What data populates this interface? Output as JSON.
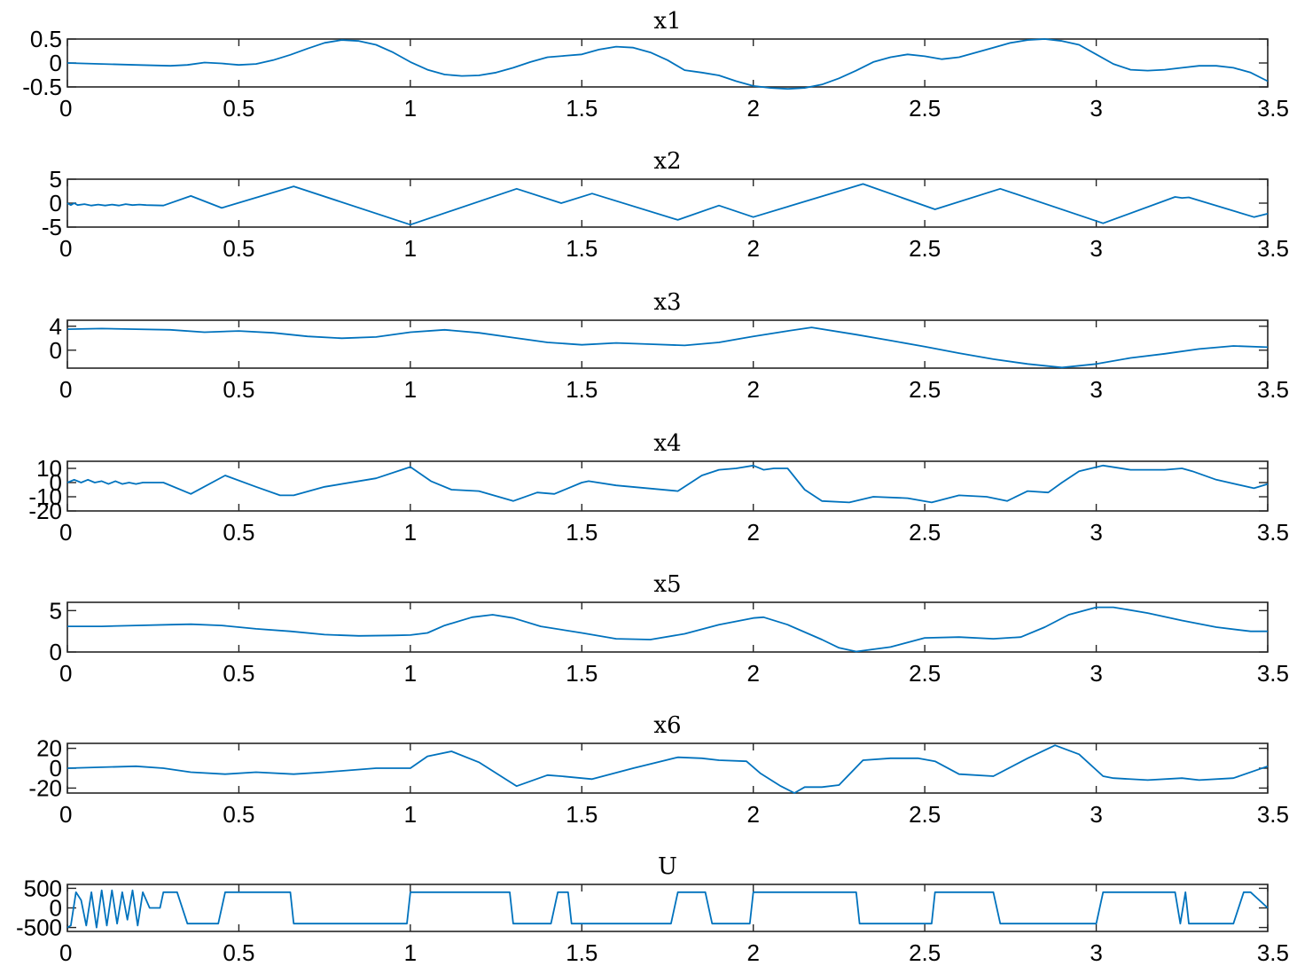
{
  "figure": {
    "line_color": "#0072BD",
    "axis_color": "#262626"
  },
  "chart_data": [
    {
      "type": "line",
      "title": "x1",
      "xlim": [
        0,
        3.5
      ],
      "ylim": [
        -0.5,
        0.5
      ],
      "xticks": [
        0,
        0.5,
        1,
        1.5,
        2,
        2.5,
        3,
        3.5
      ],
      "xtick_labels": [
        "0",
        "0.5",
        "1",
        "1.5",
        "2",
        "2.5",
        "3",
        "3.5"
      ],
      "yticks": [
        -0.5,
        0,
        0.5
      ],
      "ytick_labels": [
        "-0.5",
        "0",
        "0.5"
      ],
      "grid": false,
      "x": [
        0,
        0.1,
        0.2,
        0.3,
        0.35,
        0.4,
        0.45,
        0.5,
        0.55,
        0.6,
        0.65,
        0.7,
        0.75,
        0.8,
        0.85,
        0.9,
        0.95,
        1.0,
        1.05,
        1.1,
        1.15,
        1.2,
        1.25,
        1.3,
        1.35,
        1.4,
        1.45,
        1.5,
        1.55,
        1.6,
        1.65,
        1.7,
        1.75,
        1.8,
        1.85,
        1.9,
        1.95,
        2.0,
        2.05,
        2.1,
        2.15,
        2.2,
        2.25,
        2.3,
        2.35,
        2.4,
        2.45,
        2.5,
        2.55,
        2.6,
        2.65,
        2.7,
        2.75,
        2.8,
        2.85,
        2.9,
        2.95,
        3.0,
        3.05,
        3.1,
        3.15,
        3.2,
        3.25,
        3.3,
        3.35,
        3.4,
        3.45,
        3.5
      ],
      "y": [
        0.0,
        -0.02,
        -0.04,
        -0.06,
        -0.04,
        0.01,
        -0.01,
        -0.04,
        -0.02,
        0.06,
        0.17,
        0.3,
        0.42,
        0.48,
        0.46,
        0.38,
        0.22,
        0.02,
        -0.14,
        -0.24,
        -0.27,
        -0.26,
        -0.2,
        -0.1,
        0.02,
        0.12,
        0.15,
        0.18,
        0.28,
        0.34,
        0.32,
        0.22,
        0.06,
        -0.15,
        -0.2,
        -0.26,
        -0.38,
        -0.48,
        -0.52,
        -0.54,
        -0.52,
        -0.45,
        -0.32,
        -0.16,
        0.02,
        0.12,
        0.18,
        0.14,
        0.08,
        0.12,
        0.22,
        0.32,
        0.42,
        0.48,
        0.5,
        0.46,
        0.38,
        0.18,
        -0.02,
        -0.14,
        -0.16,
        -0.14,
        -0.1,
        -0.06,
        -0.06,
        -0.1,
        -0.2,
        -0.38
      ]
    },
    {
      "type": "line",
      "title": "x2",
      "xlim": [
        0,
        3.5
      ],
      "ylim": [
        -5,
        5
      ],
      "xticks": [
        0,
        0.5,
        1,
        1.5,
        2,
        2.5,
        3,
        3.5
      ],
      "xtick_labels": [
        "0",
        "0.5",
        "1",
        "1.5",
        "2",
        "2.5",
        "3",
        "3.5"
      ],
      "yticks": [
        -5,
        0,
        5
      ],
      "ytick_labels": [
        "-5",
        "0",
        "5"
      ],
      "grid": false,
      "x": [
        0,
        0.01,
        0.02,
        0.03,
        0.05,
        0.07,
        0.09,
        0.11,
        0.13,
        0.15,
        0.17,
        0.19,
        0.21,
        0.23,
        0.28,
        0.36,
        0.45,
        0.66,
        1.0,
        1.31,
        1.44,
        1.53,
        1.78,
        1.9,
        2.0,
        2.32,
        2.53,
        2.72,
        3.02,
        3.23,
        3.25,
        3.27,
        3.46,
        3.5
      ],
      "y": [
        0.0,
        -0.4,
        0.0,
        -0.4,
        -0.2,
        -0.5,
        -0.3,
        -0.5,
        -0.3,
        -0.5,
        -0.2,
        -0.4,
        -0.3,
        -0.4,
        -0.5,
        1.5,
        -1.0,
        3.5,
        -4.5,
        3.0,
        0.0,
        2.0,
        -3.5,
        -0.5,
        -2.9,
        4.0,
        -1.3,
        3.0,
        -4.2,
        1.3,
        1.1,
        1.2,
        -2.9,
        -2.2
      ]
    },
    {
      "type": "line",
      "title": "x3",
      "xlim": [
        0,
        3.5
      ],
      "ylim": [
        -3,
        5
      ],
      "xticks": [
        0,
        0.5,
        1,
        1.5,
        2,
        2.5,
        3,
        3.5
      ],
      "xtick_labels": [
        "0",
        "0.5",
        "1",
        "1.5",
        "2",
        "2.5",
        "3",
        "3.5"
      ],
      "yticks": [
        0,
        4
      ],
      "ytick_labels": [
        "0",
        "4"
      ],
      "grid": false,
      "x": [
        0,
        0.1,
        0.2,
        0.3,
        0.4,
        0.5,
        0.6,
        0.7,
        0.8,
        0.9,
        1.0,
        1.1,
        1.2,
        1.3,
        1.4,
        1.5,
        1.6,
        1.7,
        1.8,
        1.9,
        2.0,
        2.1,
        2.17,
        2.3,
        2.4,
        2.5,
        2.6,
        2.7,
        2.8,
        2.9,
        3.0,
        3.1,
        3.2,
        3.3,
        3.4,
        3.5
      ],
      "y": [
        3.5,
        3.6,
        3.5,
        3.4,
        3.0,
        3.2,
        2.9,
        2.3,
        2.0,
        2.2,
        3.0,
        3.4,
        2.9,
        2.1,
        1.3,
        0.9,
        1.2,
        1.0,
        0.8,
        1.3,
        2.3,
        3.2,
        3.8,
        2.6,
        1.6,
        0.6,
        -0.5,
        -1.5,
        -2.3,
        -2.9,
        -2.3,
        -1.3,
        -0.6,
        0.2,
        0.7,
        0.5
      ]
    },
    {
      "type": "line",
      "title": "x4",
      "xlim": [
        0,
        3.5
      ],
      "ylim": [
        -20,
        15
      ],
      "xticks": [
        0,
        0.5,
        1,
        1.5,
        2,
        2.5,
        3,
        3.5
      ],
      "xtick_labels": [
        "0",
        "0.5",
        "1",
        "1.5",
        "2",
        "2.5",
        "3",
        "3.5"
      ],
      "yticks": [
        -20,
        -10,
        0,
        10
      ],
      "ytick_labels": [
        "-20",
        "-10",
        "0",
        "10"
      ],
      "grid": false,
      "x": [
        0,
        0.02,
        0.04,
        0.06,
        0.08,
        0.1,
        0.12,
        0.14,
        0.16,
        0.18,
        0.2,
        0.22,
        0.24,
        0.28,
        0.36,
        0.46,
        0.55,
        0.62,
        0.66,
        0.75,
        0.9,
        1.0,
        1.06,
        1.12,
        1.2,
        1.3,
        1.37,
        1.42,
        1.5,
        1.52,
        1.6,
        1.78,
        1.85,
        1.9,
        1.95,
        2.0,
        2.03,
        2.06,
        2.1,
        2.15,
        2.2,
        2.28,
        2.35,
        2.45,
        2.52,
        2.6,
        2.68,
        2.74,
        2.8,
        2.86,
        2.9,
        2.95,
        3.02,
        3.1,
        3.2,
        3.25,
        3.28,
        3.35,
        3.46,
        3.5
      ],
      "y": [
        0,
        2,
        0,
        2,
        0,
        1,
        -1,
        1,
        -1,
        0,
        -1,
        0,
        0,
        0,
        -8,
        5,
        -3,
        -9,
        -9,
        -3,
        3,
        11,
        1,
        -5,
        -6,
        -13,
        -7,
        -8,
        0,
        1,
        -2,
        -6,
        5,
        9,
        10,
        12,
        9,
        10,
        10,
        -5,
        -13,
        -14,
        -10,
        -11,
        -14,
        -9,
        -10,
        -13,
        -6,
        -7,
        0,
        8,
        12,
        9,
        9,
        10,
        8,
        2,
        -4,
        -1
      ]
    },
    {
      "type": "line",
      "title": "x5",
      "xlim": [
        0,
        3.5
      ],
      "ylim": [
        0,
        6
      ],
      "xticks": [
        0,
        0.5,
        1,
        1.5,
        2,
        2.5,
        3,
        3.5
      ],
      "xtick_labels": [
        "0",
        "0.5",
        "1",
        "1.5",
        "2",
        "2.5",
        "3",
        "3.5"
      ],
      "yticks": [
        0,
        5
      ],
      "ytick_labels": [
        "0",
        "5"
      ],
      "grid": false,
      "x": [
        0,
        0.1,
        0.2,
        0.3,
        0.36,
        0.45,
        0.55,
        0.65,
        0.75,
        0.85,
        0.95,
        1.0,
        1.05,
        1.1,
        1.18,
        1.24,
        1.3,
        1.38,
        1.5,
        1.6,
        1.7,
        1.8,
        1.9,
        2.0,
        2.03,
        2.1,
        2.2,
        2.25,
        2.3,
        2.4,
        2.5,
        2.6,
        2.7,
        2.78,
        2.85,
        2.92,
        3.0,
        3.05,
        3.15,
        3.25,
        3.35,
        3.45,
        3.5
      ],
      "y": [
        3.1,
        3.1,
        3.2,
        3.3,
        3.35,
        3.2,
        2.8,
        2.5,
        2.1,
        1.95,
        2.0,
        2.05,
        2.3,
        3.2,
        4.2,
        4.5,
        4.1,
        3.1,
        2.3,
        1.6,
        1.5,
        2.2,
        3.3,
        4.1,
        4.2,
        3.3,
        1.5,
        0.5,
        0.05,
        0.6,
        1.7,
        1.8,
        1.6,
        1.8,
        3.0,
        4.5,
        5.4,
        5.4,
        4.7,
        3.8,
        3.0,
        2.5,
        2.5
      ]
    },
    {
      "type": "line",
      "title": "x6",
      "xlim": [
        0,
        3.5
      ],
      "ylim": [
        -25,
        25
      ],
      "xticks": [
        0,
        0.5,
        1,
        1.5,
        2,
        2.5,
        3,
        3.5
      ],
      "xtick_labels": [
        "0",
        "0.5",
        "1",
        "1.5",
        "2",
        "2.5",
        "3",
        "3.5"
      ],
      "yticks": [
        -20,
        0,
        20
      ],
      "ytick_labels": [
        "-20",
        "0",
        "20"
      ],
      "grid": false,
      "x": [
        0,
        0.1,
        0.2,
        0.28,
        0.36,
        0.46,
        0.55,
        0.66,
        0.75,
        0.9,
        1.0,
        1.05,
        1.12,
        1.2,
        1.31,
        1.4,
        1.44,
        1.53,
        1.65,
        1.78,
        1.85,
        1.9,
        1.98,
        2.02,
        2.08,
        2.12,
        2.15,
        2.2,
        2.25,
        2.32,
        2.4,
        2.48,
        2.53,
        2.6,
        2.7,
        2.8,
        2.88,
        2.95,
        3.02,
        3.05,
        3.15,
        3.25,
        3.3,
        3.4,
        3.5
      ],
      "y": [
        0,
        1,
        2,
        0,
        -4,
        -6,
        -4,
        -6,
        -4,
        0,
        0,
        12,
        17,
        6,
        -18,
        -7,
        -8,
        -11,
        0,
        11,
        10,
        8,
        7,
        -5,
        -18,
        -25,
        -19,
        -19,
        -17,
        8,
        10,
        10,
        7,
        -6,
        -8,
        10,
        23,
        14,
        -8,
        -10,
        -12,
        -10,
        -12,
        -10,
        2
      ]
    },
    {
      "type": "line",
      "title": "U",
      "xlim": [
        0,
        3.5
      ],
      "ylim": [
        -600,
        600
      ],
      "xticks": [
        0,
        0.5,
        1,
        1.5,
        2,
        2.5,
        3,
        3.5
      ],
      "xtick_labels": [
        "0",
        "0.5",
        "1",
        "1.5",
        "2",
        "2.5",
        "3",
        "3.5"
      ],
      "yticks": [
        -500,
        0,
        500
      ],
      "ytick_labels": [
        "-500",
        "0",
        "500"
      ],
      "grid": false,
      "x": [
        0,
        0.01,
        0.025,
        0.04,
        0.055,
        0.07,
        0.085,
        0.1,
        0.115,
        0.13,
        0.145,
        0.16,
        0.175,
        0.19,
        0.205,
        0.22,
        0.24,
        0.27,
        0.28,
        0.32,
        0.35,
        0.36,
        0.44,
        0.46,
        0.65,
        0.66,
        0.99,
        1.0,
        1.29,
        1.3,
        1.41,
        1.43,
        1.46,
        1.47,
        1.76,
        1.78,
        1.86,
        1.88,
        1.99,
        2.0,
        2.3,
        2.31,
        2.52,
        2.53,
        2.7,
        2.72,
        3.0,
        3.02,
        3.23,
        3.245,
        3.26,
        3.27,
        3.4,
        3.43,
        3.45,
        3.5
      ],
      "y": [
        -500,
        -450,
        400,
        200,
        -450,
        400,
        -500,
        450,
        -450,
        450,
        -400,
        400,
        -300,
        450,
        -450,
        400,
        0,
        0,
        400,
        400,
        -400,
        -400,
        -400,
        400,
        400,
        -400,
        -400,
        400,
        400,
        -400,
        -400,
        400,
        400,
        -400,
        -400,
        400,
        400,
        -400,
        -400,
        400,
        400,
        -400,
        -400,
        400,
        400,
        -400,
        -400,
        400,
        400,
        -400,
        400,
        -400,
        -400,
        400,
        400,
        0
      ]
    }
  ]
}
